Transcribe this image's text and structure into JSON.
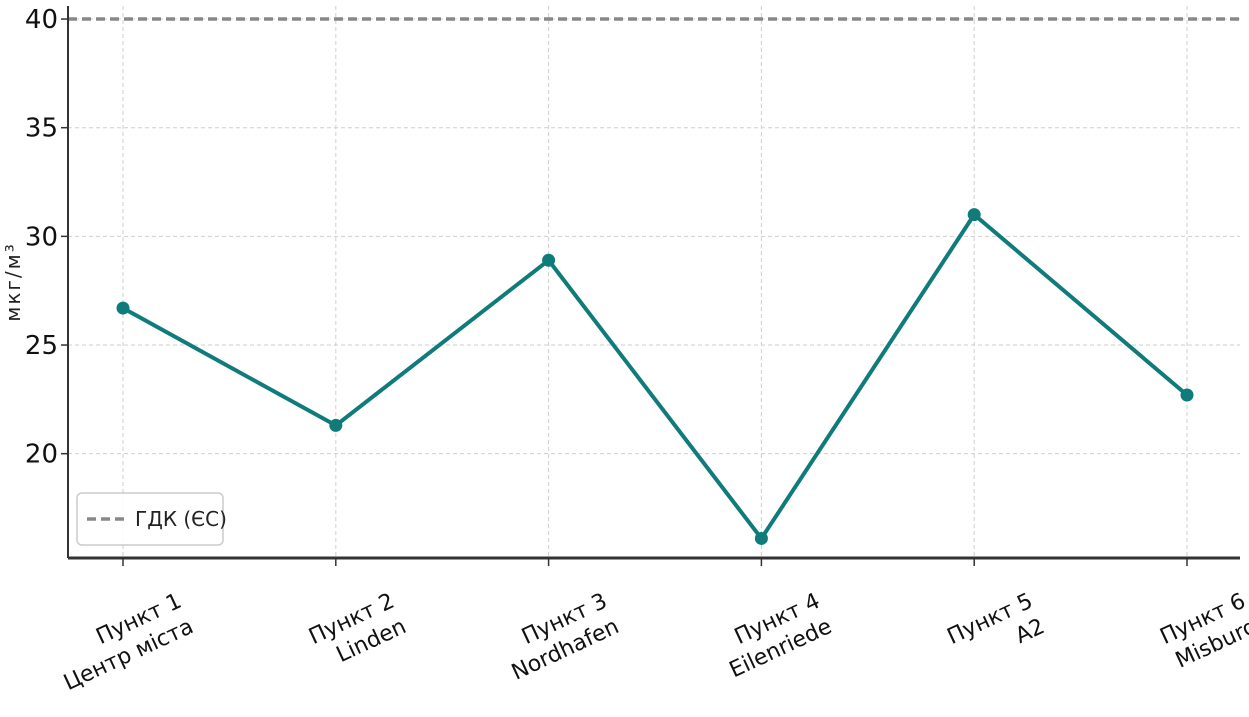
{
  "chart_data": {
    "type": "line",
    "categories": [
      [
        "Пункт 1",
        "Центр міста"
      ],
      [
        "Пункт 2",
        "Linden"
      ],
      [
        "Пункт 3",
        "Nordhafen"
      ],
      [
        "Пункт 4",
        "Eilenriede"
      ],
      [
        "Пункт 5",
        "A2"
      ],
      [
        "Пункт 6",
        "Misburg"
      ]
    ],
    "series": [
      {
        "values": [
          26.7,
          21.3,
          28.9,
          16.1,
          31.0,
          22.7
        ],
        "color": "#0f7b7a"
      }
    ],
    "reference_line": {
      "value": 40,
      "label": "ГДК (ЄС)",
      "color": "#888888",
      "style": "dashed"
    },
    "ylabel": "мкг/м³",
    "yticks": [
      20,
      25,
      30,
      35,
      40
    ],
    "ylim": [
      15.2,
      40.6
    ],
    "grid": true,
    "legend_position": "lower-left"
  }
}
